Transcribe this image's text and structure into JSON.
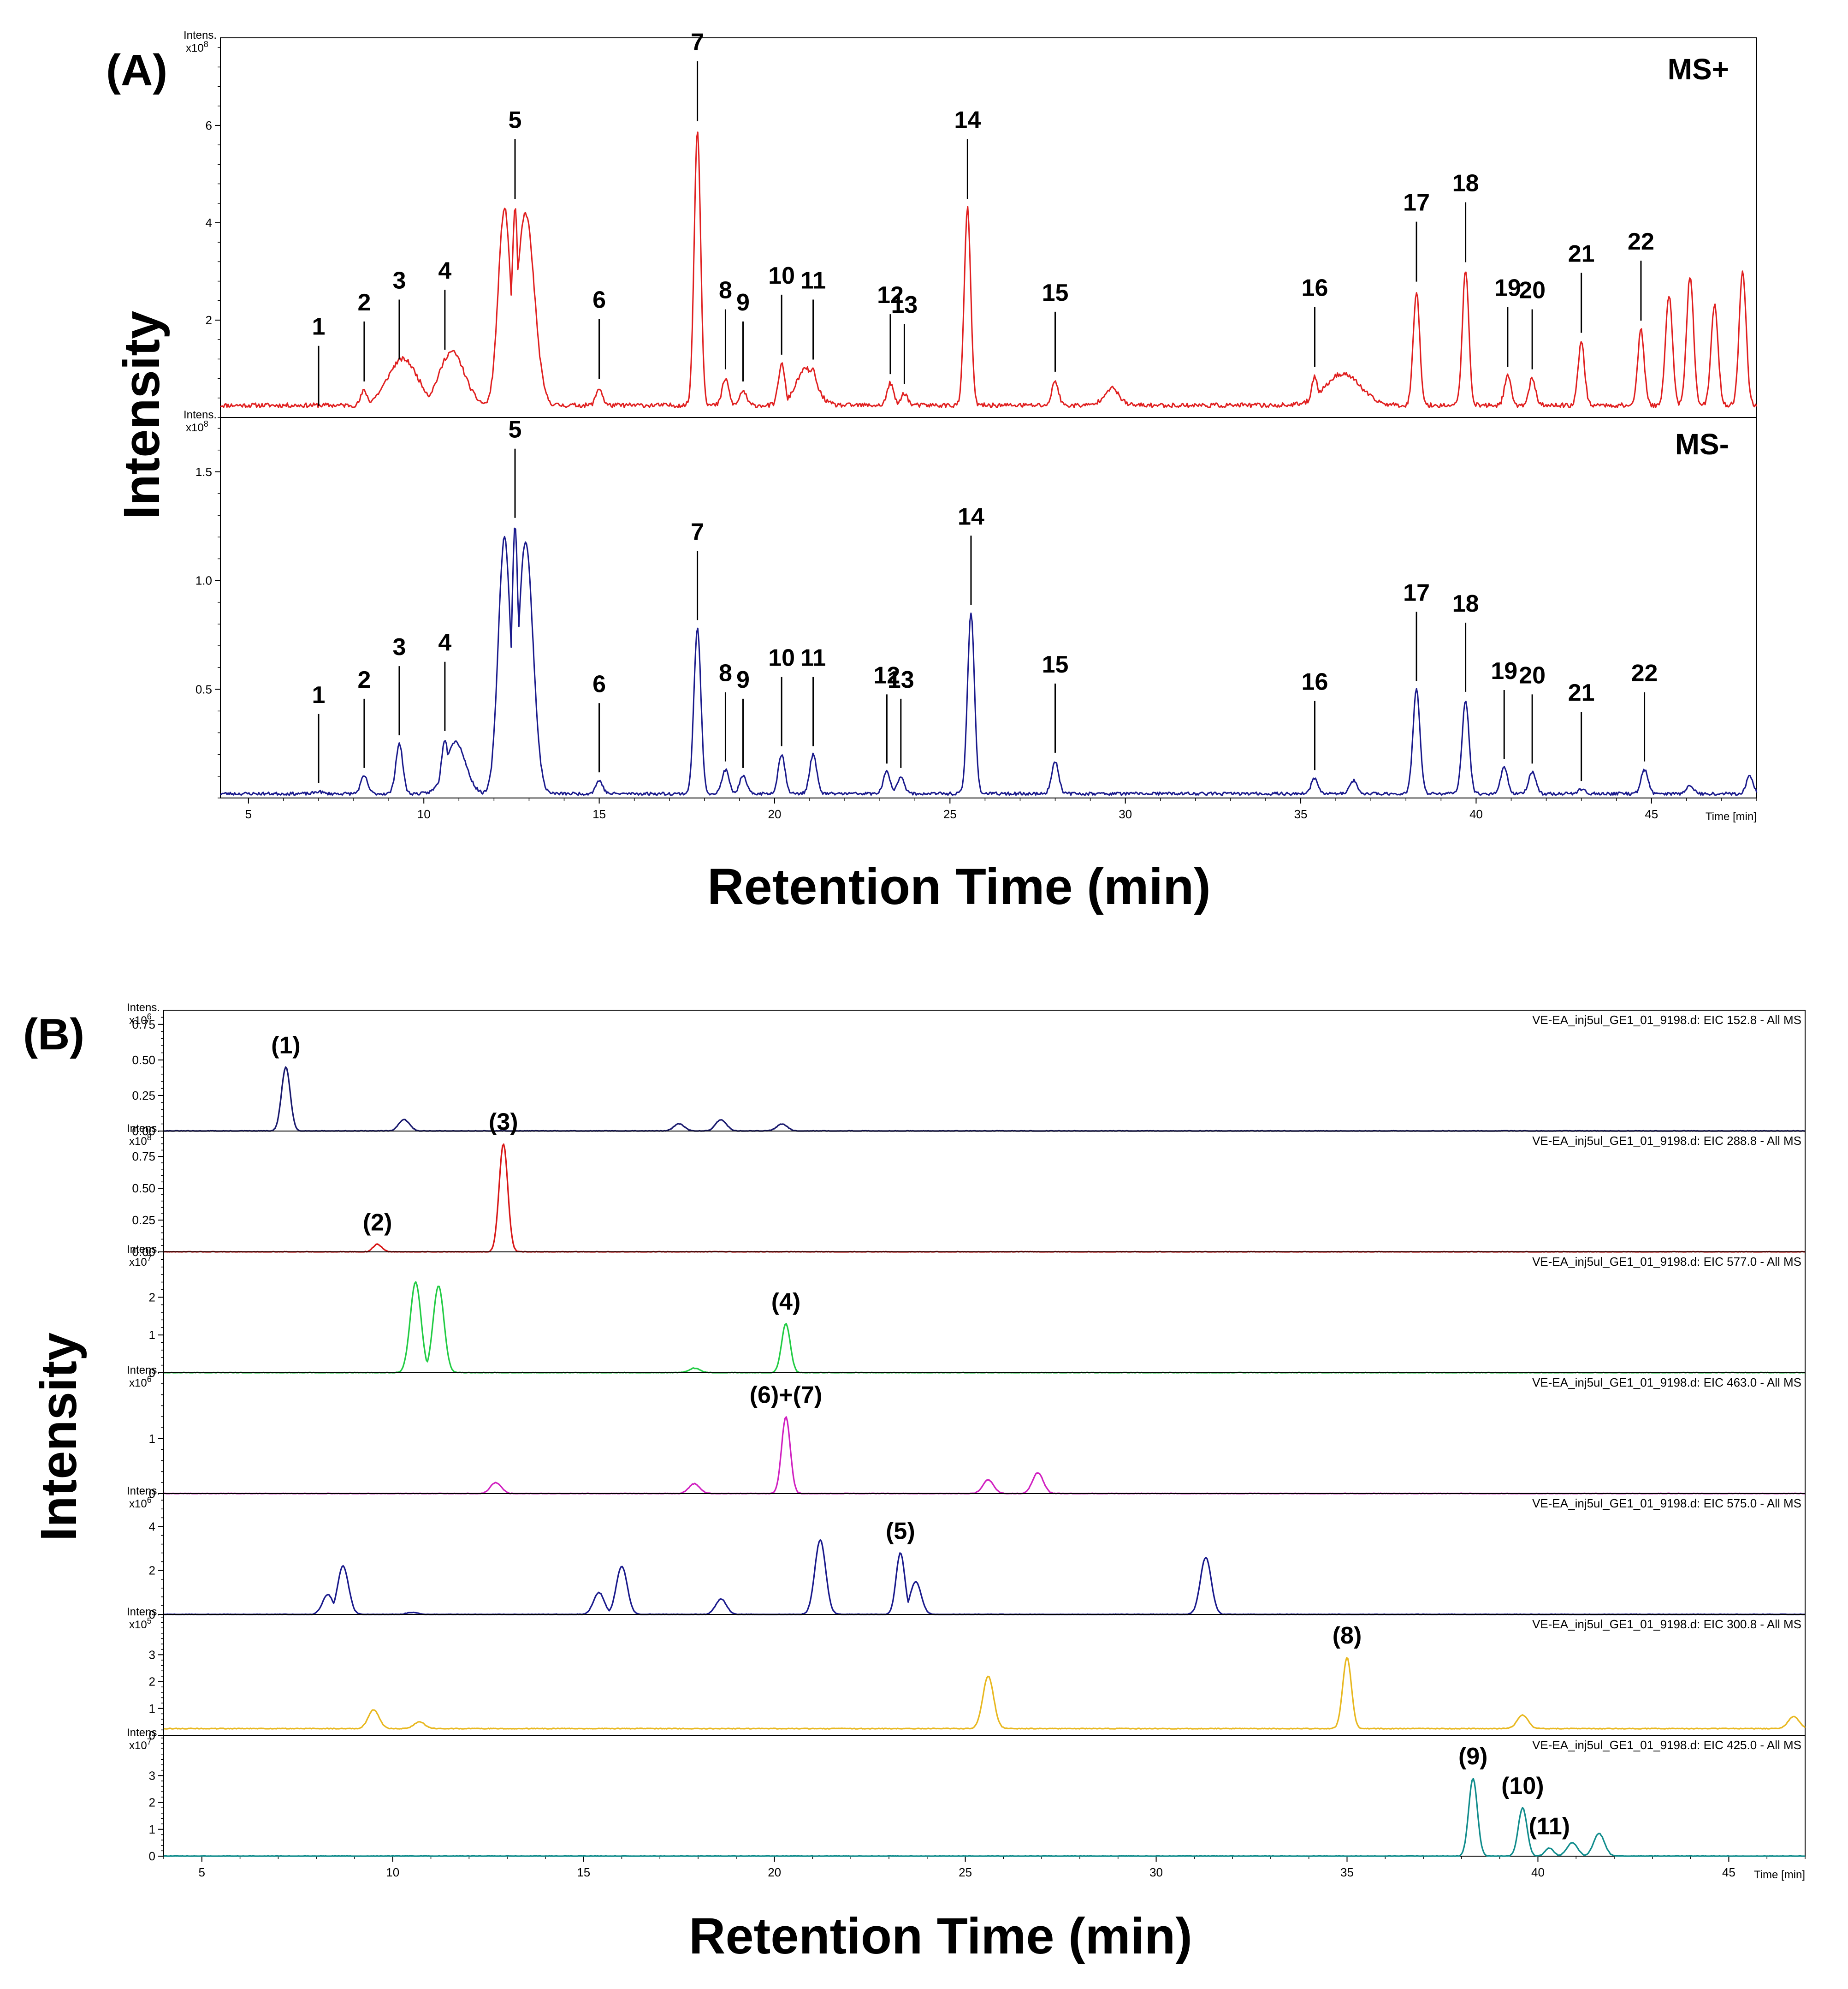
{
  "panel_a": {
    "label": "(A)",
    "ylabel": "Intensity",
    "xlabel": "Retention Time (min)",
    "x_unit_label": "Time [min]"
  },
  "panel_b": {
    "label": "(B)",
    "ylabel": "Intensity",
    "xlabel": "Retention Time (min)",
    "x_unit_label": "Time [min]"
  },
  "colors": {
    "ms_pos": "#e02020",
    "ms_neg": "#1a1a8c",
    "eic_152": "#1a1a6e",
    "eic_288": "#d81818",
    "eic_577": "#22cc44",
    "eic_463": "#d020c0",
    "eic_575": "#1a1a8c",
    "eic_300": "#e8b820",
    "eic_425": "#108c8c"
  },
  "chart_data": [
    {
      "type": "line",
      "panel": "A-top",
      "mode_label": "MS+",
      "y_unit": "Intens.",
      "y_exponent": "x10^8",
      "xlim": [
        4.2,
        48
      ],
      "ylim": [
        0,
        7.8
      ],
      "x_ticks": [
        5,
        10,
        15,
        20,
        25,
        30,
        35,
        40,
        45
      ],
      "y_ticks": [
        2,
        4,
        6
      ],
      "baseline": 0.25,
      "peaks": [
        {
          "label": "1",
          "x": 7.0,
          "y": 0.05
        },
        {
          "label": "2",
          "x": 8.3,
          "y": 0.55
        },
        {
          "label": "3",
          "x": 9.3,
          "y": 1.0
        },
        {
          "label": "4",
          "x": 10.6,
          "y": 1.2
        },
        {
          "label": "5",
          "x": 12.6,
          "y": 4.3
        },
        {
          "label": "6",
          "x": 15.0,
          "y": 0.6
        },
        {
          "label": "7",
          "x": 17.8,
          "y": 5.9
        },
        {
          "label": "8",
          "x": 18.6,
          "y": 0.8
        },
        {
          "label": "9",
          "x": 19.1,
          "y": 0.55
        },
        {
          "label": "10",
          "x": 20.2,
          "y": 1.1
        },
        {
          "label": "11",
          "x": 21.1,
          "y": 1.0
        },
        {
          "label": "12",
          "x": 23.3,
          "y": 0.7
        },
        {
          "label": "13",
          "x": 23.7,
          "y": 0.5
        },
        {
          "label": "14",
          "x": 25.5,
          "y": 4.3
        },
        {
          "label": "15",
          "x": 28.0,
          "y": 0.75
        },
        {
          "label": "16",
          "x": 35.4,
          "y": 0.85
        },
        {
          "label": "17",
          "x": 38.3,
          "y": 2.6
        },
        {
          "label": "18",
          "x": 39.7,
          "y": 3.0
        },
        {
          "label": "19",
          "x": 40.9,
          "y": 0.85
        },
        {
          "label": "20",
          "x": 41.6,
          "y": 0.8
        },
        {
          "label": "21",
          "x": 43.0,
          "y": 1.55
        },
        {
          "label": "22",
          "x": 44.7,
          "y": 1.8
        }
      ],
      "extra_peaks": [
        {
          "x": 45.5,
          "y": 2.5
        },
        {
          "x": 46.1,
          "y": 2.9
        },
        {
          "x": 46.8,
          "y": 2.3
        },
        {
          "x": 47.6,
          "y": 3.0
        }
      ],
      "bumps": [
        {
          "x": 9.4,
          "y": 1.2,
          "w": 0.6
        },
        {
          "x": 10.8,
          "y": 1.35,
          "w": 0.5
        },
        {
          "x": 12.3,
          "y": 4.3,
          "w": 0.25
        },
        {
          "x": 12.9,
          "y": 4.2,
          "w": 0.35
        },
        {
          "x": 20.9,
          "y": 1.0,
          "w": 0.4
        },
        {
          "x": 29.6,
          "y": 0.6,
          "w": 0.3
        },
        {
          "x": 36.2,
          "y": 0.9,
          "w": 0.7
        }
      ]
    },
    {
      "type": "line",
      "panel": "A-bottom",
      "mode_label": "MS-",
      "y_unit": "Intens.",
      "y_exponent": "x10^8",
      "xlim": [
        4.2,
        48
      ],
      "ylim": [
        0,
        1.75
      ],
      "x_ticks": [
        5,
        10,
        15,
        20,
        25,
        30,
        35,
        40,
        45
      ],
      "y_ticks": [
        0.5,
        1.0,
        1.5
      ],
      "baseline": 0.02,
      "peaks": [
        {
          "label": "1",
          "x": 7.0,
          "y": 0.03
        },
        {
          "label": "2",
          "x": 8.3,
          "y": 0.1
        },
        {
          "label": "3",
          "x": 9.3,
          "y": 0.25
        },
        {
          "label": "4",
          "x": 10.6,
          "y": 0.27
        },
        {
          "label": "5",
          "x": 12.6,
          "y": 1.25
        },
        {
          "label": "6",
          "x": 15.0,
          "y": 0.08
        },
        {
          "label": "7",
          "x": 17.8,
          "y": 0.78
        },
        {
          "label": "8",
          "x": 18.6,
          "y": 0.13
        },
        {
          "label": "9",
          "x": 19.1,
          "y": 0.1
        },
        {
          "label": "10",
          "x": 20.2,
          "y": 0.2
        },
        {
          "label": "11",
          "x": 21.1,
          "y": 0.2
        },
        {
          "label": "12",
          "x": 23.2,
          "y": 0.12
        },
        {
          "label": "13",
          "x": 23.6,
          "y": 0.1
        },
        {
          "label": "14",
          "x": 25.6,
          "y": 0.85
        },
        {
          "label": "15",
          "x": 28.0,
          "y": 0.17
        },
        {
          "label": "16",
          "x": 35.4,
          "y": 0.09
        },
        {
          "label": "17",
          "x": 38.3,
          "y": 0.5
        },
        {
          "label": "18",
          "x": 39.7,
          "y": 0.45
        },
        {
          "label": "19",
          "x": 40.8,
          "y": 0.14
        },
        {
          "label": "20",
          "x": 41.6,
          "y": 0.12
        },
        {
          "label": "21",
          "x": 43.0,
          "y": 0.04
        },
        {
          "label": "22",
          "x": 44.8,
          "y": 0.13
        }
      ],
      "extra_peaks": [
        {
          "x": 46.1,
          "y": 0.06
        },
        {
          "x": 47.8,
          "y": 0.1
        },
        {
          "x": 36.5,
          "y": 0.08
        }
      ],
      "bumps": [
        {
          "x": 10.9,
          "y": 0.26,
          "w": 0.4
        },
        {
          "x": 12.3,
          "y": 1.2,
          "w": 0.25
        },
        {
          "x": 12.9,
          "y": 1.18,
          "w": 0.3
        }
      ]
    },
    {
      "type": "line",
      "panel": "B-1",
      "trace_title": "VE-EA_inj5ul_GE1_01_9198.d: EIC 152.8 - All MS",
      "y_unit": "Intens.",
      "y_exponent": "x10^6",
      "xlim": [
        4,
        47
      ],
      "ylim": [
        0,
        0.85
      ],
      "x_ticks": [
        5,
        10,
        15,
        20,
        25,
        30,
        35,
        40,
        45
      ],
      "y_ticks": [
        0.0,
        0.25,
        0.5,
        0.75
      ],
      "y_tick_labels": [
        "0.00",
        "0.25",
        "0.50",
        "0.75"
      ],
      "peaks": [
        {
          "label": "(1)",
          "x": 7.2,
          "y": 0.45
        }
      ],
      "minor_peaks": [
        {
          "x": 10.3,
          "y": 0.08
        },
        {
          "x": 18.6,
          "y": 0.08
        },
        {
          "x": 17.5,
          "y": 0.05
        },
        {
          "x": 20.2,
          "y": 0.05
        }
      ]
    },
    {
      "type": "line",
      "panel": "B-2",
      "trace_title": "VE-EA_inj5ul_GE1_01_9198.d: EIC 288.8 - All MS",
      "y_unit": "Intens.",
      "y_exponent": "x10^8",
      "xlim": [
        4,
        47
      ],
      "ylim": [
        0,
        0.95
      ],
      "x_ticks": [
        5,
        10,
        15,
        20,
        25,
        30,
        35,
        40,
        45
      ],
      "y_ticks": [
        0.0,
        0.25,
        0.5,
        0.75
      ],
      "y_tick_labels": [
        "0.00",
        "0.25",
        "0.50",
        "0.75"
      ],
      "peaks": [
        {
          "label": "(2)",
          "x": 9.6,
          "y": 0.06
        },
        {
          "label": "(3)",
          "x": 12.9,
          "y": 0.85
        }
      ]
    },
    {
      "type": "line",
      "panel": "B-3",
      "trace_title": "VE-EA_inj5ul_GE1_01_9198.d: EIC 577.0 - All MS",
      "y_unit": "Intens.",
      "y_exponent": "x10^7",
      "xlim": [
        4,
        47
      ],
      "ylim": [
        0,
        3.2
      ],
      "x_ticks": [
        5,
        10,
        15,
        20,
        25,
        30,
        35,
        40,
        45
      ],
      "y_ticks": [
        0,
        1,
        2
      ],
      "y_tick_labels": [
        "0",
        "1",
        "2"
      ],
      "peaks": [
        {
          "label": "(4)",
          "x": 20.3,
          "y": 1.3
        }
      ],
      "minor_peaks": [
        {
          "x": 10.6,
          "y": 2.4
        },
        {
          "x": 11.2,
          "y": 2.3
        },
        {
          "x": 17.9,
          "y": 0.12
        }
      ]
    },
    {
      "type": "line",
      "panel": "B-4",
      "trace_title": "VE-EA_inj5ul_GE1_01_9198.d: EIC 463.0 - All MS",
      "y_unit": "Intens.",
      "y_exponent": "x10^6",
      "xlim": [
        4,
        47
      ],
      "ylim": [
        0,
        2.2
      ],
      "x_ticks": [
        5,
        10,
        15,
        20,
        25,
        30,
        35,
        40,
        45
      ],
      "y_ticks": [
        0,
        1
      ],
      "y_tick_labels": [
        "0",
        "1"
      ],
      "peaks": [
        {
          "label": "(6)+(7)",
          "x": 20.3,
          "y": 1.4
        }
      ],
      "minor_peaks": [
        {
          "x": 12.7,
          "y": 0.2
        },
        {
          "x": 17.9,
          "y": 0.18
        },
        {
          "x": 25.6,
          "y": 0.25
        },
        {
          "x": 26.9,
          "y": 0.38
        }
      ]
    },
    {
      "type": "line",
      "panel": "B-5",
      "trace_title": "VE-EA_inj5ul_GE1_01_9198.d: EIC 575.0 - All MS",
      "y_unit": "Intens.",
      "y_exponent": "x10^6",
      "xlim": [
        4,
        47
      ],
      "ylim": [
        0,
        5.5
      ],
      "x_ticks": [
        5,
        10,
        15,
        20,
        25,
        30,
        35,
        40,
        45
      ],
      "y_ticks": [
        0,
        2,
        4
      ],
      "y_tick_labels": [
        "0",
        "2",
        "4"
      ],
      "peaks": [
        {
          "label": "(5)",
          "x": 23.3,
          "y": 2.8
        }
      ],
      "minor_peaks": [
        {
          "x": 8.7,
          "y": 2.2
        },
        {
          "x": 8.3,
          "y": 0.9
        },
        {
          "x": 16.0,
          "y": 2.2
        },
        {
          "x": 15.4,
          "y": 1.0
        },
        {
          "x": 18.6,
          "y": 0.7
        },
        {
          "x": 21.2,
          "y": 3.4
        },
        {
          "x": 23.7,
          "y": 1.5
        },
        {
          "x": 31.3,
          "y": 2.6
        },
        {
          "x": 10.5,
          "y": 0.1
        }
      ]
    },
    {
      "type": "line",
      "panel": "B-6",
      "trace_title": "VE-EA_inj5ul_GE1_01_9198.d: EIC 300.8 - All MS",
      "y_unit": "Intens.",
      "y_exponent": "x10^5",
      "xlim": [
        4,
        47
      ],
      "ylim": [
        0,
        4.5
      ],
      "x_ticks": [
        5,
        10,
        15,
        20,
        25,
        30,
        35,
        40,
        45
      ],
      "y_ticks": [
        0,
        1,
        2,
        3
      ],
      "y_tick_labels": [
        "0",
        "1",
        "2",
        "3"
      ],
      "baseline": 0.25,
      "peaks": [
        {
          "label": "(8)",
          "x": 35.0,
          "y": 2.9
        }
      ],
      "minor_peaks": [
        {
          "x": 9.5,
          "y": 0.95
        },
        {
          "x": 25.6,
          "y": 2.2
        },
        {
          "x": 39.6,
          "y": 0.75
        },
        {
          "x": 46.7,
          "y": 0.7
        },
        {
          "x": 10.7,
          "y": 0.5
        }
      ]
    },
    {
      "type": "line",
      "panel": "B-7",
      "trace_title": "VE-EA_inj5ul_GE1_01_9198.d: EIC 425.0 - All MS",
      "y_unit": "Intens.",
      "y_exponent": "x10^7",
      "xlim": [
        4,
        47
      ],
      "ylim": [
        0,
        4.5
      ],
      "x_ticks": [
        5,
        10,
        15,
        20,
        25,
        30,
        35,
        40,
        45
      ],
      "y_ticks": [
        0,
        1,
        2,
        3
      ],
      "y_tick_labels": [
        "0",
        "1",
        "2",
        "3"
      ],
      "peaks": [
        {
          "label": "(9)",
          "x": 38.3,
          "y": 2.9
        },
        {
          "label": "(10)",
          "x": 39.6,
          "y": 1.8
        },
        {
          "label": "(11)",
          "x": 40.3,
          "y": 0.3
        }
      ],
      "minor_peaks": [
        {
          "x": 40.9,
          "y": 0.5
        },
        {
          "x": 41.6,
          "y": 0.85
        }
      ]
    }
  ]
}
